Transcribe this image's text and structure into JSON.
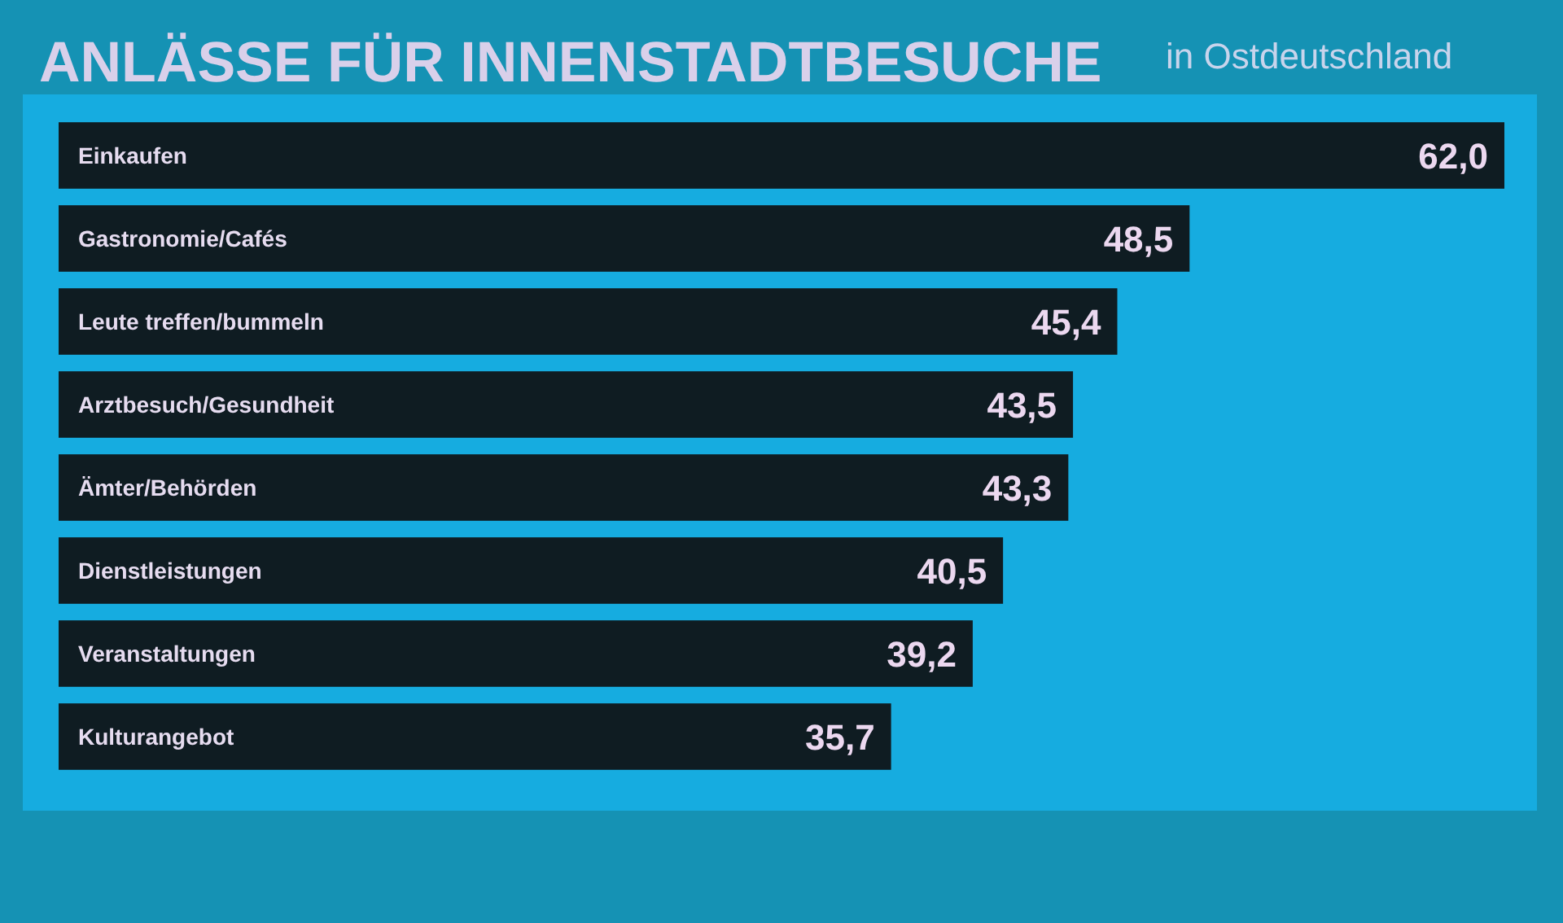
{
  "chart_data": {
    "type": "bar",
    "orientation": "horizontal",
    "title": "ANLÄSSE FÜR INNENSTADTBESUCHE",
    "subtitle": "in Ostdeutschland",
    "categories": [
      "Einkaufen",
      "Gastronomie/Cafés",
      "Leute treffen/bummeln",
      "Arztbesuch/Gesundheit",
      "Ämter/Behörden",
      "Dienstleistungen",
      "Veranstaltungen",
      "Kulturangebot"
    ],
    "values": [
      62.0,
      48.5,
      45.4,
      43.5,
      43.3,
      40.5,
      39.2,
      35.7
    ],
    "value_labels": [
      "62,0",
      "48,5",
      "45,4",
      "43,5",
      "43,3",
      "40,5",
      "39,2",
      "35,7"
    ],
    "color": "#0f1c22",
    "grid": false
  }
}
